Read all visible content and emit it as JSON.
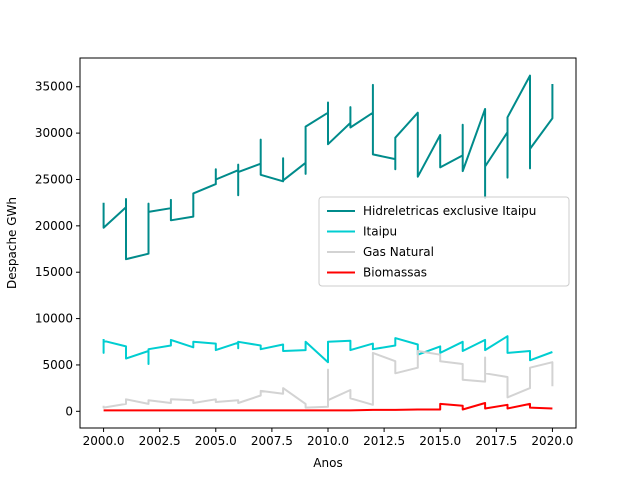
{
  "chart_data": {
    "type": "line",
    "xlabel": "Anos",
    "ylabel": "Despache GWh",
    "xlim": [
      1998.95,
      2021.05
    ],
    "ylim": [
      -1800,
      38100
    ],
    "x_ticks": [
      2000.0,
      2002.5,
      2005.0,
      2007.5,
      2010.0,
      2012.5,
      2015.0,
      2017.5,
      2020.0
    ],
    "x_tick_labels": [
      "2000.0",
      "2002.5",
      "2005.0",
      "2007.5",
      "2010.0",
      "2012.5",
      "2015.0",
      "2017.5",
      "2020.0"
    ],
    "y_ticks": [
      0,
      5000,
      10000,
      15000,
      20000,
      25000,
      30000,
      35000
    ],
    "y_tick_labels": [
      "0",
      "5000",
      "10000",
      "15000",
      "20000",
      "25000",
      "30000",
      "35000"
    ],
    "grid": false,
    "legend_position": "center-right",
    "series": [
      {
        "name": "Hidreletricas exclusive Itaipu",
        "color": "#008b8b",
        "points": [
          [
            2000,
            22500
          ],
          [
            2000,
            19800
          ],
          [
            2001,
            22000
          ],
          [
            2001,
            22900
          ],
          [
            2001,
            16400
          ],
          [
            2002,
            17000
          ],
          [
            2002,
            22400
          ],
          [
            2002,
            21500
          ],
          [
            2003,
            21900
          ],
          [
            2003,
            22800
          ],
          [
            2003,
            20600
          ],
          [
            2004,
            21000
          ],
          [
            2004,
            22500
          ],
          [
            2004,
            23500
          ],
          [
            2005,
            24500
          ],
          [
            2005,
            26100
          ],
          [
            2005,
            25000
          ],
          [
            2006,
            26000
          ],
          [
            2006,
            26600
          ],
          [
            2006,
            23300
          ],
          [
            2006,
            25800
          ],
          [
            2007,
            26700
          ],
          [
            2007,
            29300
          ],
          [
            2007,
            25500
          ],
          [
            2008,
            24800
          ],
          [
            2008,
            27300
          ],
          [
            2008,
            24900
          ],
          [
            2009,
            26800
          ],
          [
            2009,
            25600
          ],
          [
            2009,
            30700
          ],
          [
            2010,
            32200
          ],
          [
            2010,
            33300
          ],
          [
            2010,
            28800
          ],
          [
            2011,
            31100
          ],
          [
            2011,
            32800
          ],
          [
            2011,
            30600
          ],
          [
            2012,
            32200
          ],
          [
            2012,
            35200
          ],
          [
            2012,
            27700
          ],
          [
            2013,
            27200
          ],
          [
            2013,
            26100
          ],
          [
            2013,
            29500
          ],
          [
            2014,
            32200
          ],
          [
            2014,
            25300
          ],
          [
            2015,
            29800
          ],
          [
            2015,
            26300
          ],
          [
            2016,
            27600
          ],
          [
            2016,
            30900
          ],
          [
            2016,
            25900
          ],
          [
            2017,
            32600
          ],
          [
            2017,
            23000
          ],
          [
            2017,
            26400
          ],
          [
            2018,
            30100
          ],
          [
            2018,
            25200
          ],
          [
            2018,
            31700
          ],
          [
            2019,
            36200
          ],
          [
            2019,
            26200
          ],
          [
            2019,
            28300
          ],
          [
            2020,
            31600
          ],
          [
            2020,
            35300
          ]
        ]
      },
      {
        "name": "Itaipu",
        "color": "#00ced1",
        "points": [
          [
            2000,
            7800
          ],
          [
            2000,
            6300
          ],
          [
            2000,
            7600
          ],
          [
            2001,
            7000
          ],
          [
            2001,
            5700
          ],
          [
            2002,
            6500
          ],
          [
            2002,
            5100
          ],
          [
            2002,
            6700
          ],
          [
            2003,
            7100
          ],
          [
            2003,
            7700
          ],
          [
            2004,
            6900
          ],
          [
            2004,
            7500
          ],
          [
            2005,
            7300
          ],
          [
            2005,
            6600
          ],
          [
            2006,
            7400
          ],
          [
            2006,
            6800
          ],
          [
            2006,
            7500
          ],
          [
            2007,
            7100
          ],
          [
            2007,
            6700
          ],
          [
            2008,
            7200
          ],
          [
            2008,
            6500
          ],
          [
            2009,
            6600
          ],
          [
            2009,
            7500
          ],
          [
            2010,
            5300
          ],
          [
            2010,
            7500
          ],
          [
            2011,
            7600
          ],
          [
            2011,
            6600
          ],
          [
            2012,
            7300
          ],
          [
            2012,
            6700
          ],
          [
            2013,
            7100
          ],
          [
            2013,
            7900
          ],
          [
            2014,
            7200
          ],
          [
            2014,
            6100
          ],
          [
            2015,
            7000
          ],
          [
            2015,
            6300
          ],
          [
            2016,
            7500
          ],
          [
            2016,
            6500
          ],
          [
            2017,
            7700
          ],
          [
            2017,
            6600
          ],
          [
            2018,
            8100
          ],
          [
            2018,
            6300
          ],
          [
            2019,
            6500
          ],
          [
            2019,
            5500
          ],
          [
            2020,
            6400
          ]
        ]
      },
      {
        "name": "Gas Natural",
        "color": "#d3d3d3",
        "points": [
          [
            2000,
            600
          ],
          [
            2000,
            400
          ],
          [
            2001,
            800
          ],
          [
            2001,
            1300
          ],
          [
            2002,
            800
          ],
          [
            2002,
            1200
          ],
          [
            2003,
            900
          ],
          [
            2003,
            1300
          ],
          [
            2004,
            1200
          ],
          [
            2004,
            900
          ],
          [
            2005,
            1300
          ],
          [
            2005,
            1000
          ],
          [
            2006,
            1200
          ],
          [
            2006,
            900
          ],
          [
            2007,
            1700
          ],
          [
            2007,
            2200
          ],
          [
            2008,
            1900
          ],
          [
            2008,
            2500
          ],
          [
            2009,
            800
          ],
          [
            2009,
            400
          ],
          [
            2010,
            500
          ],
          [
            2010,
            4500
          ],
          [
            2010,
            1200
          ],
          [
            2011,
            2300
          ],
          [
            2011,
            1400
          ],
          [
            2012,
            700
          ],
          [
            2012,
            6300
          ],
          [
            2013,
            5400
          ],
          [
            2013,
            4100
          ],
          [
            2014,
            4700
          ],
          [
            2014,
            6500
          ],
          [
            2015,
            6100
          ],
          [
            2015,
            5400
          ],
          [
            2016,
            5100
          ],
          [
            2016,
            3400
          ],
          [
            2017,
            3200
          ],
          [
            2017,
            5800
          ],
          [
            2017,
            4100
          ],
          [
            2018,
            3700
          ],
          [
            2018,
            1500
          ],
          [
            2019,
            2500
          ],
          [
            2019,
            4700
          ],
          [
            2020,
            5300
          ],
          [
            2020,
            2700
          ]
        ]
      },
      {
        "name": "Biomassas",
        "color": "#ff0000",
        "points": [
          [
            2000,
            100
          ],
          [
            2001,
            100
          ],
          [
            2002,
            100
          ],
          [
            2003,
            100
          ],
          [
            2004,
            100
          ],
          [
            2005,
            100
          ],
          [
            2006,
            100
          ],
          [
            2007,
            100
          ],
          [
            2008,
            100
          ],
          [
            2009,
            100
          ],
          [
            2010,
            100
          ],
          [
            2011,
            100
          ],
          [
            2012,
            150
          ],
          [
            2013,
            150
          ],
          [
            2014,
            200
          ],
          [
            2015,
            200
          ],
          [
            2015,
            800
          ],
          [
            2016,
            600
          ],
          [
            2016,
            200
          ],
          [
            2017,
            900
          ],
          [
            2017,
            300
          ],
          [
            2018,
            700
          ],
          [
            2018,
            300
          ],
          [
            2019,
            800
          ],
          [
            2019,
            400
          ],
          [
            2020,
            300
          ]
        ]
      }
    ]
  }
}
